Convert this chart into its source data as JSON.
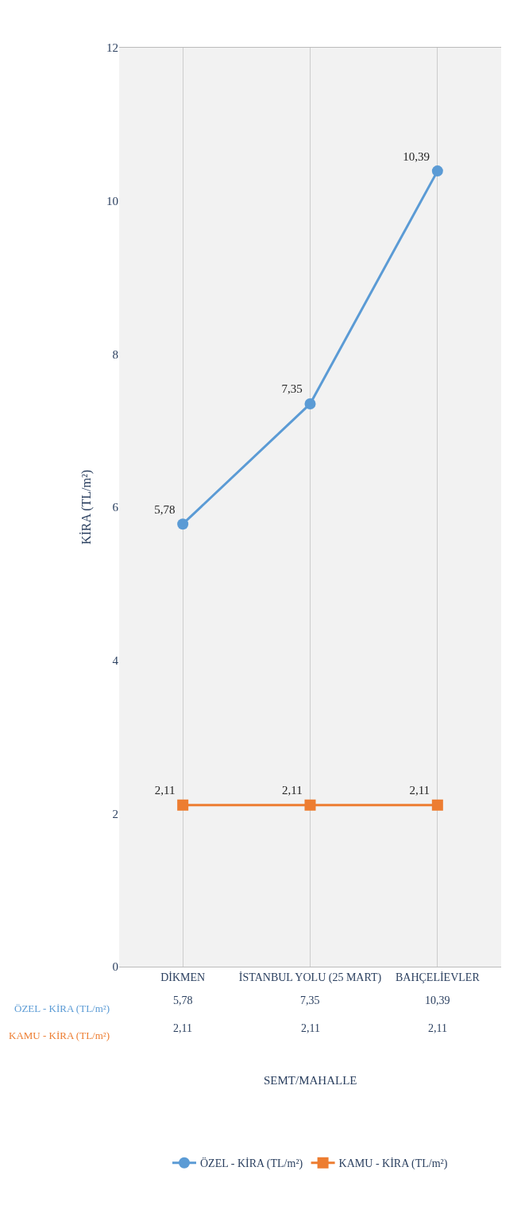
{
  "chart_data": {
    "type": "line",
    "ylabel": "KİRA (TL/m²)",
    "annotations": [
      "SEMT/MAHALLE"
    ],
    "categories": [
      "DİKMEN",
      "İSTANBUL YOLU (25 MART)",
      "BAHÇELİEVLER"
    ],
    "series": [
      {
        "name": "ÖZEL - KİRA (TL/m²)",
        "color": "#5b9bd5",
        "values": [
          5.78,
          7.35,
          10.39
        ],
        "value_labels": [
          "5,78",
          "7,35",
          "10,39"
        ],
        "marker": "circle"
      },
      {
        "name": "KAMU - KİRA (TL/m²)",
        "color": "#ed7d31",
        "values": [
          2.11,
          2.11,
          2.11
        ],
        "value_labels": [
          "2,11",
          "2,11",
          "2,11"
        ],
        "marker": "square"
      }
    ],
    "ylim": [
      0,
      12
    ],
    "yticks": [
      0,
      2,
      4,
      6,
      8,
      10,
      12
    ],
    "grid": "x",
    "legend": "bottom",
    "line_style": "solid"
  }
}
